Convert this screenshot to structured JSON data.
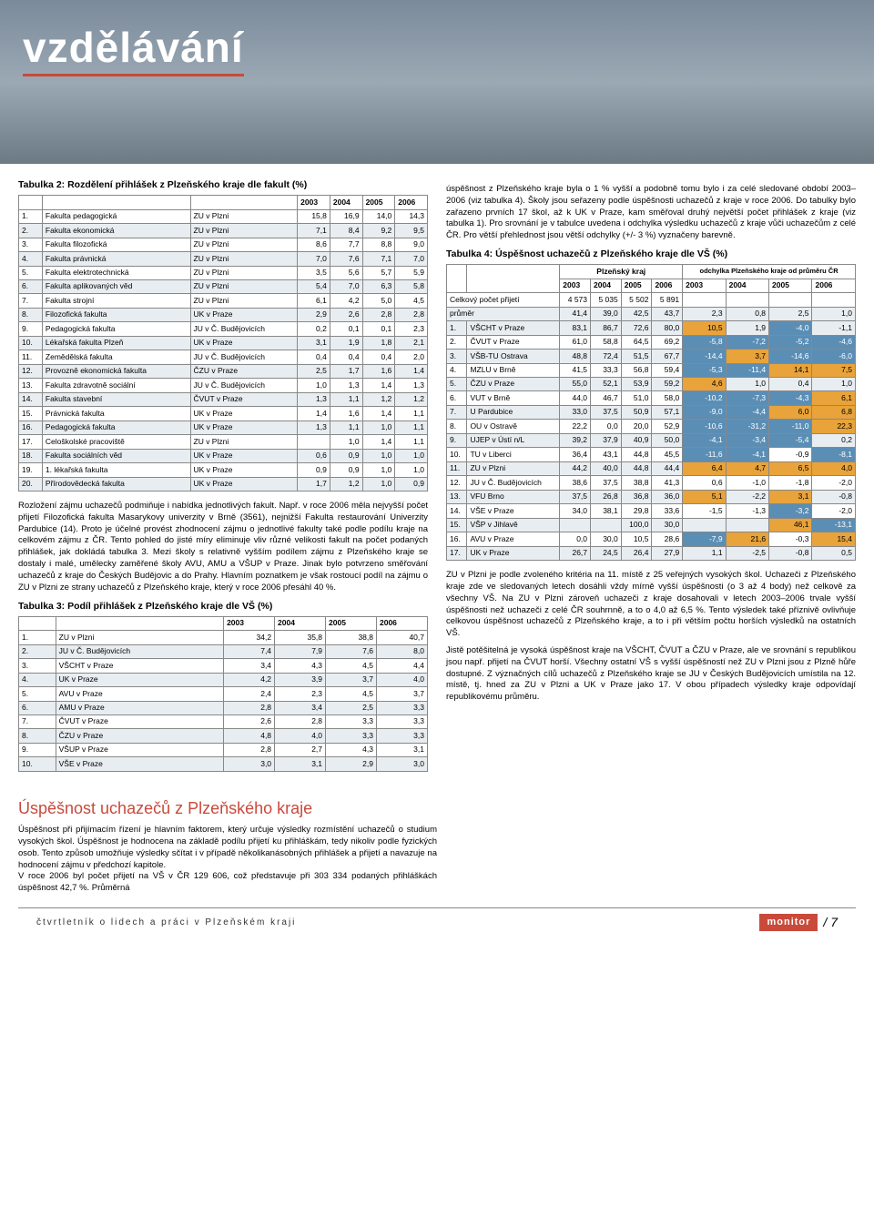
{
  "header": {
    "section_title": "vzdělávání"
  },
  "table2": {
    "title": "Tabulka 2: Rozdělení přihlášek z Plzeňského kraje dle fakult (%)",
    "year_cols": [
      "2003",
      "2004",
      "2005",
      "2006"
    ],
    "rows": [
      {
        "n": "1.",
        "f": "Fakulta pedagogická",
        "u": "ZU v Plzni",
        "v": [
          "15,8",
          "16,9",
          "14,0",
          "14,3"
        ]
      },
      {
        "n": "2.",
        "f": "Fakulta ekonomická",
        "u": "ZU v Plzni",
        "v": [
          "7,1",
          "8,4",
          "9,2",
          "9,5"
        ]
      },
      {
        "n": "3.",
        "f": "Fakulta filozofická",
        "u": "ZU v Plzni",
        "v": [
          "8,6",
          "7,7",
          "8,8",
          "9,0"
        ]
      },
      {
        "n": "4.",
        "f": "Fakulta právnická",
        "u": "ZU v Plzni",
        "v": [
          "7,0",
          "7,6",
          "7,1",
          "7,0"
        ]
      },
      {
        "n": "5.",
        "f": "Fakulta elektrotechnická",
        "u": "ZU v Plzni",
        "v": [
          "3,5",
          "5,6",
          "5,7",
          "5,9"
        ]
      },
      {
        "n": "6.",
        "f": "Fakulta aplikovaných věd",
        "u": "ZU v Plzni",
        "v": [
          "5,4",
          "7,0",
          "6,3",
          "5,8"
        ]
      },
      {
        "n": "7.",
        "f": "Fakulta strojní",
        "u": "ZU v Plzni",
        "v": [
          "6,1",
          "4,2",
          "5,0",
          "4,5"
        ]
      },
      {
        "n": "8.",
        "f": "Filozofická fakulta",
        "u": "UK v Praze",
        "v": [
          "2,9",
          "2,6",
          "2,8",
          "2,8"
        ]
      },
      {
        "n": "9.",
        "f": "Pedagogická fakulta",
        "u": "JU v Č. Budějovicích",
        "v": [
          "0,2",
          "0,1",
          "0,1",
          "2,3"
        ]
      },
      {
        "n": "10.",
        "f": "Lékařská fakulta Plzeň",
        "u": "UK v Praze",
        "v": [
          "3,1",
          "1,9",
          "1,8",
          "2,1"
        ]
      },
      {
        "n": "11.",
        "f": "Zemědělská fakulta",
        "u": "JU v Č. Budějovicích",
        "v": [
          "0,4",
          "0,4",
          "0,4",
          "2,0"
        ]
      },
      {
        "n": "12.",
        "f": "Provozně ekonomická fakulta",
        "u": "ČZU v Praze",
        "v": [
          "2,5",
          "1,7",
          "1,6",
          "1,4"
        ]
      },
      {
        "n": "13.",
        "f": "Fakulta zdravotně sociální",
        "u": "JU v Č. Budějovicích",
        "v": [
          "1,0",
          "1,3",
          "1,4",
          "1,3"
        ]
      },
      {
        "n": "14.",
        "f": "Fakulta stavební",
        "u": "ČVUT v Praze",
        "v": [
          "1,3",
          "1,1",
          "1,2",
          "1,2"
        ]
      },
      {
        "n": "15.",
        "f": "Právnická fakulta",
        "u": "UK v Praze",
        "v": [
          "1,4",
          "1,6",
          "1,4",
          "1,1"
        ]
      },
      {
        "n": "16.",
        "f": "Pedagogická fakulta",
        "u": "UK v Praze",
        "v": [
          "1,3",
          "1,1",
          "1,0",
          "1,1"
        ]
      },
      {
        "n": "17.",
        "f": "Celoškolské pracoviště",
        "u": "ZU v Plzni",
        "v": [
          "",
          "1,0",
          "1,4",
          "1,1"
        ]
      },
      {
        "n": "18.",
        "f": "Fakulta sociálních věd",
        "u": "UK v Praze",
        "v": [
          "0,6",
          "0,9",
          "1,0",
          "1,0"
        ]
      },
      {
        "n": "19.",
        "f": "1. lékařská fakulta",
        "u": "UK v Praze",
        "v": [
          "0,9",
          "0,9",
          "1,0",
          "1,0"
        ]
      },
      {
        "n": "20.",
        "f": "Přírodovědecká fakulta",
        "u": "UK v Praze",
        "v": [
          "1,7",
          "1,2",
          "1,0",
          "0,9"
        ]
      }
    ]
  },
  "para1": "Rozložení zájmu uchazečů podmiňuje i nabídka jednotlivých fakult. Např. v roce 2006 měla nejvyšší počet přijetí Filozofická fakulta Masarykovy univerzity v Brně (3561), nejnižší Fakulta restaurování Univerzity Pardubice (14). Proto je účelné provést zhodnocení zájmu o jednotlivé fakulty také podle podílu kraje na celkovém zájmu z ČR. Tento pohled do jisté míry eliminuje vliv různé velikosti fakult na počet podaných přihlášek, jak dokládá tabulka 3. Mezi školy s relativně vyšším podílem zájmu z Plzeňského kraje se dostaly i malé, umělecky zaměřené školy AVU, AMU a VŠUP v Praze. Jinak bylo potvrzeno směřování uchazečů z kraje do Českých Budějovic a do Prahy. Hlavním poznatkem je však rostoucí podíl na zájmu o ZU v Plzni ze strany uchazečů z Plzeňského kraje, který v roce 2006 přesáhl 40 %.",
  "table3": {
    "title": "Tabulka 3: Podíl přihlášek z Plzeňského kraje dle VŠ (%)",
    "year_cols": [
      "2003",
      "2004",
      "2005",
      "2006"
    ],
    "rows": [
      {
        "n": "1.",
        "s": "ZU v Plzni",
        "v": [
          "34,2",
          "35,8",
          "38,8",
          "40,7"
        ]
      },
      {
        "n": "2.",
        "s": "JU v Č. Budějovicích",
        "v": [
          "7,4",
          "7,9",
          "7,6",
          "8,0"
        ]
      },
      {
        "n": "3.",
        "s": "VŠCHT v Praze",
        "v": [
          "3,4",
          "4,3",
          "4,5",
          "4,4"
        ]
      },
      {
        "n": "4.",
        "s": "UK v Praze",
        "v": [
          "4,2",
          "3,9",
          "3,7",
          "4,0"
        ]
      },
      {
        "n": "5.",
        "s": "AVU v Praze",
        "v": [
          "2,4",
          "2,3",
          "4,5",
          "3,7"
        ]
      },
      {
        "n": "6.",
        "s": "AMU v Praze",
        "v": [
          "2,8",
          "3,4",
          "2,5",
          "3,3"
        ]
      },
      {
        "n": "7.",
        "s": "ČVUT v Praze",
        "v": [
          "2,6",
          "2,8",
          "3,3",
          "3,3"
        ]
      },
      {
        "n": "8.",
        "s": "ČZU v Praze",
        "v": [
          "4,8",
          "4,0",
          "3,3",
          "3,3"
        ]
      },
      {
        "n": "9.",
        "s": "VŠUP v Praze",
        "v": [
          "2,8",
          "2,7",
          "4,3",
          "3,1"
        ]
      },
      {
        "n": "10.",
        "s": "VŠE v Praze",
        "v": [
          "3,0",
          "3,1",
          "2,9",
          "3,0"
        ]
      }
    ]
  },
  "para2a": "úspěšnost z Plzeňského kraje byla o 1 % vyšší a podobně tomu bylo i za celé sledované období 2003–2006 (viz tabulka 4). Školy jsou seřazeny podle úspěšnosti uchazečů z kraje v roce 2006. Do tabulky bylo zařazeno prvních 17 škol, až k UK v Praze, kam směřoval druhý největší počet přihlášek z kraje (viz tabulka 1). Pro srovnání je v tabulce uvedena i odchylka výsledku uchazečů z kraje vůči uchazečům z celé ČR. Pro větší přehlednost jsou větší odchylky (+/- 3 %) vyznačeny barevně.",
  "table4": {
    "title": "Tabulka 4: Úspěšnost uchazečů z Plzeňského kraje dle VŠ (%)",
    "group1": "Plzeňský kraj",
    "group2": "odchylka Plzeňského kraje od průměru ČR",
    "years": [
      "2003",
      "2004",
      "2005",
      "2006",
      "2003",
      "2004",
      "2005",
      "2006"
    ],
    "total_row_label": "Celkový počet přijetí",
    "total_row_vals": [
      "4 573",
      "5 035",
      "5 502",
      "5 891",
      "",
      "",
      "",
      ""
    ],
    "avg_row_label": "průměr",
    "avg_row_vals": [
      "41,4",
      "39,0",
      "42,5",
      "43,7",
      "2,3",
      "0,8",
      "2,5",
      "1,0"
    ],
    "rows": [
      {
        "n": "1.",
        "s": "VŠCHT v Praze",
        "v": [
          "83,1",
          "86,7",
          "72,6",
          "80,0",
          "10,5",
          "1,9",
          "-4,0",
          "-1,1"
        ],
        "hl": [
          0,
          0,
          0,
          0,
          "p",
          0,
          "n",
          0
        ]
      },
      {
        "n": "2.",
        "s": "ČVUT v Praze",
        "v": [
          "61,0",
          "58,8",
          "64,5",
          "69,2",
          "-5,8",
          "-7,2",
          "-5,2",
          "-4,6"
        ],
        "hl": [
          0,
          0,
          0,
          0,
          "n",
          "n",
          "n",
          "n"
        ]
      },
      {
        "n": "3.",
        "s": "VŠB-TU Ostrava",
        "v": [
          "48,8",
          "72,4",
          "51,5",
          "67,7",
          "-14,4",
          "3,7",
          "-14,6",
          "-6,0"
        ],
        "hl": [
          0,
          0,
          0,
          0,
          "n",
          "p",
          "n",
          "n"
        ]
      },
      {
        "n": "4.",
        "s": "MZLU v Brně",
        "v": [
          "41,5",
          "33,3",
          "56,8",
          "59,4",
          "-5,3",
          "-11,4",
          "14,1",
          "7,5"
        ],
        "hl": [
          0,
          0,
          0,
          0,
          "n",
          "n",
          "p",
          "p"
        ]
      },
      {
        "n": "5.",
        "s": "ČZU v Praze",
        "v": [
          "55,0",
          "52,1",
          "53,9",
          "59,2",
          "4,6",
          "1,0",
          "0,4",
          "1,0"
        ],
        "hl": [
          0,
          0,
          0,
          0,
          "p",
          0,
          0,
          0
        ]
      },
      {
        "n": "6.",
        "s": "VUT v Brně",
        "v": [
          "44,0",
          "46,7",
          "51,0",
          "58,0",
          "-10,2",
          "-7,3",
          "-4,3",
          "6,1"
        ],
        "hl": [
          0,
          0,
          0,
          0,
          "n",
          "n",
          "n",
          "p"
        ]
      },
      {
        "n": "7.",
        "s": "U Pardubice",
        "v": [
          "33,0",
          "37,5",
          "50,9",
          "57,1",
          "-9,0",
          "-4,4",
          "6,0",
          "6,8"
        ],
        "hl": [
          0,
          0,
          0,
          0,
          "n",
          "n",
          "p",
          "p"
        ]
      },
      {
        "n": "8.",
        "s": "OU v Ostravě",
        "v": [
          "22,2",
          "0,0",
          "20,0",
          "52,9",
          "-10,6",
          "-31,2",
          "-11,0",
          "22,3"
        ],
        "hl": [
          0,
          0,
          0,
          0,
          "n",
          "n",
          "n",
          "p"
        ]
      },
      {
        "n": "9.",
        "s": "UJEP v Ústí n/L",
        "v": [
          "39,2",
          "37,9",
          "40,9",
          "50,0",
          "-4,1",
          "-3,4",
          "-5,4",
          "0,2"
        ],
        "hl": [
          0,
          0,
          0,
          0,
          "n",
          "n",
          "n",
          0
        ]
      },
      {
        "n": "10.",
        "s": "TU v Liberci",
        "v": [
          "36,4",
          "43,1",
          "44,8",
          "45,5",
          "-11,6",
          "-4,1",
          "-0,9",
          "-8,1"
        ],
        "hl": [
          0,
          0,
          0,
          0,
          "n",
          "n",
          0,
          "n"
        ]
      },
      {
        "n": "11.",
        "s": "ZU v Plzni",
        "v": [
          "44,2",
          "40,0",
          "44,8",
          "44,4",
          "6,4",
          "4,7",
          "6,5",
          "4,0"
        ],
        "hl": [
          0,
          0,
          0,
          0,
          "p",
          "p",
          "p",
          "p"
        ]
      },
      {
        "n": "12.",
        "s": "JU v Č. Budějovicích",
        "v": [
          "38,6",
          "37,5",
          "38,8",
          "41,3",
          "0,6",
          "-1,0",
          "-1,8",
          "-2,0"
        ],
        "hl": [
          0,
          0,
          0,
          0,
          0,
          0,
          0,
          0
        ]
      },
      {
        "n": "13.",
        "s": "VFU Brno",
        "v": [
          "37,5",
          "26,8",
          "36,8",
          "36,0",
          "5,1",
          "-2,2",
          "3,1",
          "-0,8"
        ],
        "hl": [
          0,
          0,
          0,
          0,
          "p",
          0,
          "p",
          0
        ]
      },
      {
        "n": "14.",
        "s": "VŠE v Praze",
        "v": [
          "34,0",
          "38,1",
          "29,8",
          "33,6",
          "-1,5",
          "-1,3",
          "-3,2",
          "-2,0"
        ],
        "hl": [
          0,
          0,
          0,
          0,
          0,
          0,
          "n",
          0
        ]
      },
      {
        "n": "15.",
        "s": "VŠP v Jihlavě",
        "v": [
          "",
          "",
          "100,0",
          "30,0",
          "",
          "",
          "46,1",
          "-13,1"
        ],
        "hl": [
          0,
          0,
          0,
          0,
          0,
          0,
          "p",
          "n"
        ]
      },
      {
        "n": "16.",
        "s": "AVU v Praze",
        "v": [
          "0,0",
          "30,0",
          "10,5",
          "28,6",
          "-7,9",
          "21,6",
          "-0,3",
          "15,4"
        ],
        "hl": [
          0,
          0,
          0,
          0,
          "n",
          "p",
          0,
          "p"
        ]
      },
      {
        "n": "17.",
        "s": "UK v Praze",
        "v": [
          "26,7",
          "24,5",
          "26,4",
          "27,9",
          "1,1",
          "-2,5",
          "-0,8",
          "0,5"
        ],
        "hl": [
          0,
          0,
          0,
          0,
          0,
          0,
          0,
          0
        ]
      }
    ]
  },
  "para2b": "ZU v Plzni je podle zvoleného kritéria na 11. místě z 25 veřejných vysokých škol. Uchazeči z Plzeňského kraje zde ve sledovaných letech dosáhli vždy mírně vyšší úspěšnosti (o 3 až 4 body) než celkově za všechny VŠ. Na ZU v Plzni zároveň uchazeči z kraje dosahovali v letech 2003–2006 trvale vyšší úspěšnosti než uchazeči z celé ČR souhrnně, a to o 4,0 až 6,5 %. Tento výsledek také příznivě ovlivňuje celkovou úspěšnost uchazečů z Plzeňského kraje, a to i při větším počtu horších výsledků na ostatních VŠ.",
  "para2c": "Jistě potěšitelná je vysoká úspěšnost kraje na VŠCHT, ČVUT a ČZU v Praze, ale ve srovnání s republikou jsou např. přijetí na ČVUT horší. Všechny ostatní VŠ s vyšší úspěšností než ZU v Plzni jsou z Plzně hůře dostupné. Z význačných cílů uchazečů z Plzeňského kraje se JU v Českých Budějovicích umístila na 12. místě, tj. hned za ZU v Plzni a UK v Praze jako 17. V obou případech výsledky kraje odpovídají republikovému průměru.",
  "bottom": {
    "heading": "Úspěšnost uchazečů z Plzeňského kraje",
    "text": "Úspěšnost při přijímacím řízení je hlavním faktorem, který určuje výsledky rozmístění uchazečů o studium vysokých škol. Úspěšnost je hodnocena na základě podílu přijetí ku přihláškám, tedy nikoliv podle fyzických osob. Tento způsob umožňuje výsledky sčítat i v případě několikanásobných přihlášek a přijetí a navazuje na hodnocení zájmu v předchozí kapitole.\nV roce 2006 byl počet přijetí na VŠ v ČR 129 606, což představuje při 303 334 podaných přihláškách úspěšnost 42,7 %. Průměrná"
  },
  "footer": {
    "left": "čtvrtletník o lidech a práci v Plzeňském kraji",
    "badge": "monitor",
    "page": "/ 7"
  },
  "style": {
    "accent": "#c94a3b",
    "neg_bg": "#5b8eb5",
    "pos_bg": "#e8a33a",
    "alt_row_bg": "#e8edf1"
  }
}
